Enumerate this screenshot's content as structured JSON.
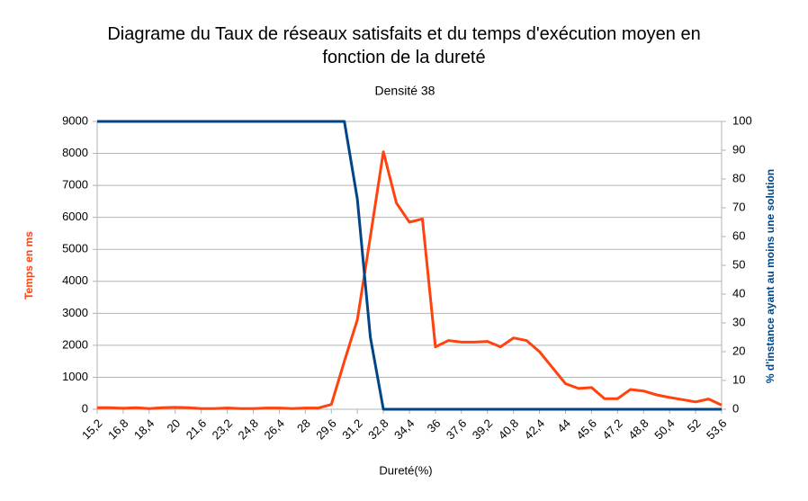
{
  "chart_data": {
    "type": "line",
    "title": "Diagrame du Taux de réseaux satisfaits et du temps d'exécution moyen en fonction de la dureté",
    "subtitle": "Densité 38",
    "x_label": "Dureté(%)",
    "y_label": "Temps en ms",
    "y2_label": "% d'instance ayant au moins une solution",
    "categories": [
      "15,2",
      null,
      "16,8",
      null,
      "18,4",
      null,
      "20",
      null,
      "21,6",
      null,
      "23,2",
      null,
      "24,8",
      null,
      "26,4",
      null,
      "28",
      null,
      "29,6",
      null,
      "31,2",
      null,
      "32,8",
      null,
      "34,4",
      null,
      "36",
      null,
      "37,6",
      null,
      "39,2",
      null,
      "40,8",
      null,
      "42,4",
      null,
      "44",
      null,
      "45,6",
      null,
      "47,2",
      null,
      "48,8",
      null,
      "50,4",
      null,
      "52",
      null,
      "53,6"
    ],
    "series": [
      {
        "name": "Temps en ms",
        "color": "#ff420e",
        "axis": "y",
        "values": [
          50,
          50,
          30,
          50,
          20,
          50,
          60,
          50,
          20,
          20,
          40,
          20,
          20,
          40,
          40,
          20,
          40,
          40,
          150,
          1500,
          2800,
          5400,
          8050,
          6450,
          5850,
          5950,
          1950,
          2150,
          2100,
          2100,
          2120,
          1950,
          2230,
          2150,
          1800,
          1300,
          800,
          650,
          680,
          330,
          330,
          620,
          570,
          450,
          370,
          300,
          230,
          320,
          130
        ]
      },
      {
        "name": "% d'instance ayant au moins une solution",
        "color": "#004586",
        "axis": "y2",
        "values": [
          100,
          100,
          100,
          100,
          100,
          100,
          100,
          100,
          100,
          100,
          100,
          100,
          100,
          100,
          100,
          100,
          100,
          100,
          100,
          100,
          73,
          25,
          0,
          0,
          0,
          0,
          0,
          0,
          0,
          0,
          0,
          0,
          0,
          0,
          0,
          0,
          0,
          0,
          0,
          0,
          0,
          0,
          0,
          0,
          0,
          0,
          0,
          0,
          0
        ]
      }
    ],
    "ylim": [
      0,
      9000
    ],
    "yticks": [
      0,
      1000,
      2000,
      3000,
      4000,
      5000,
      6000,
      7000,
      8000,
      9000
    ],
    "y2lim": [
      0,
      100
    ],
    "y2ticks": [
      0,
      10,
      20,
      30,
      40,
      50,
      60,
      70,
      80,
      90,
      100
    ],
    "grid": true
  }
}
